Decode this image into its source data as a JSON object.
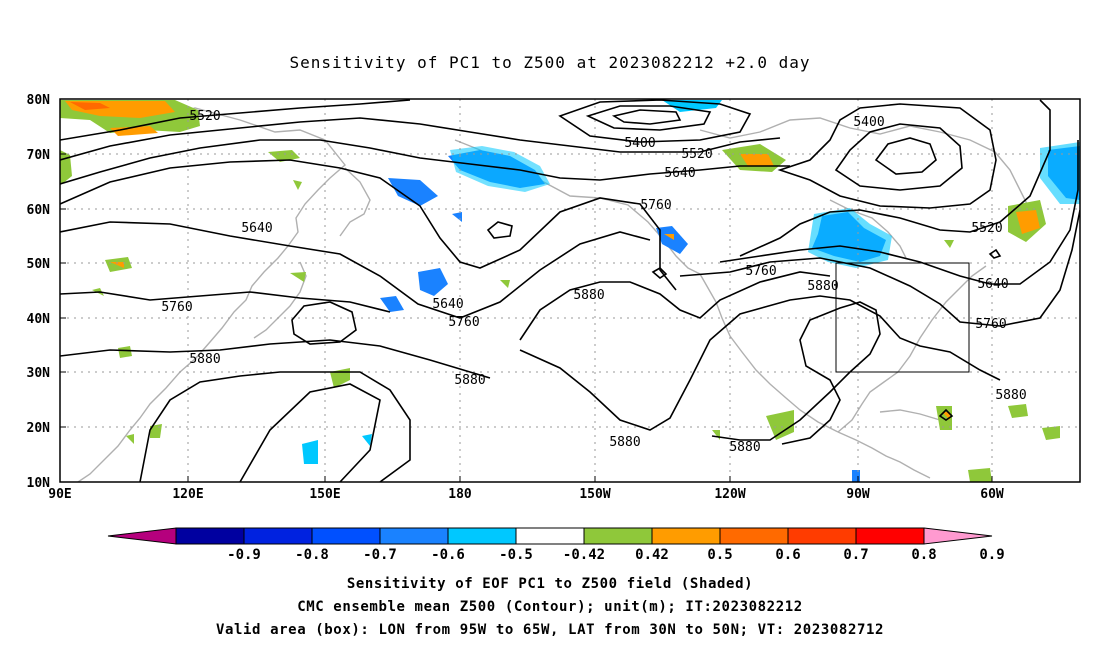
{
  "title": "Sensitivity of PC1 to Z500 at 2023082212 +2.0 day",
  "map": {
    "lat_labels": [
      "80N",
      "70N",
      "60N",
      "50N",
      "40N",
      "30N",
      "20N",
      "10N"
    ],
    "lon_labels": [
      "90E",
      "120E",
      "150E",
      "180",
      "150W",
      "120W",
      "90W",
      "60W"
    ],
    "contour_labels": [
      "5520",
      "5400",
      "5520",
      "5400",
      "5640",
      "5760",
      "5640",
      "5760",
      "5880",
      "5640",
      "5760",
      "5880",
      "5880",
      "5880",
      "5760",
      "5880",
      "5520",
      "5640",
      "5760",
      "5880",
      "5880"
    ],
    "box": {
      "lon_from": "95W",
      "lon_to": "65W",
      "lat_from": "30N",
      "lat_to": "50N"
    }
  },
  "colorbar": {
    "labels": [
      "-0.9",
      "-0.8",
      "-0.7",
      "-0.6",
      "-0.5",
      "-0.42",
      "0.42",
      "0.5",
      "0.6",
      "0.7",
      "0.8",
      "0.9"
    ],
    "colors": [
      "#b5007d",
      "#0000a0",
      "#0022e0",
      "#0050ff",
      "#1a82ff",
      "#00c8ff",
      "#ffffff",
      "#8fc83a",
      "#ff9c00",
      "#ff6a00",
      "#ff3c00",
      "#ff0000",
      "#ff9ad0"
    ]
  },
  "caption": {
    "line1": "Sensitivity of EOF PC1 to Z500 field (Shaded)",
    "line2": "CMC ensemble mean Z500 (Contour); unit(m); IT:2023082212",
    "line3": "Valid area (box): LON from 95W to 65W, LAT from 30N to 50N; VT: 2023082712"
  }
}
